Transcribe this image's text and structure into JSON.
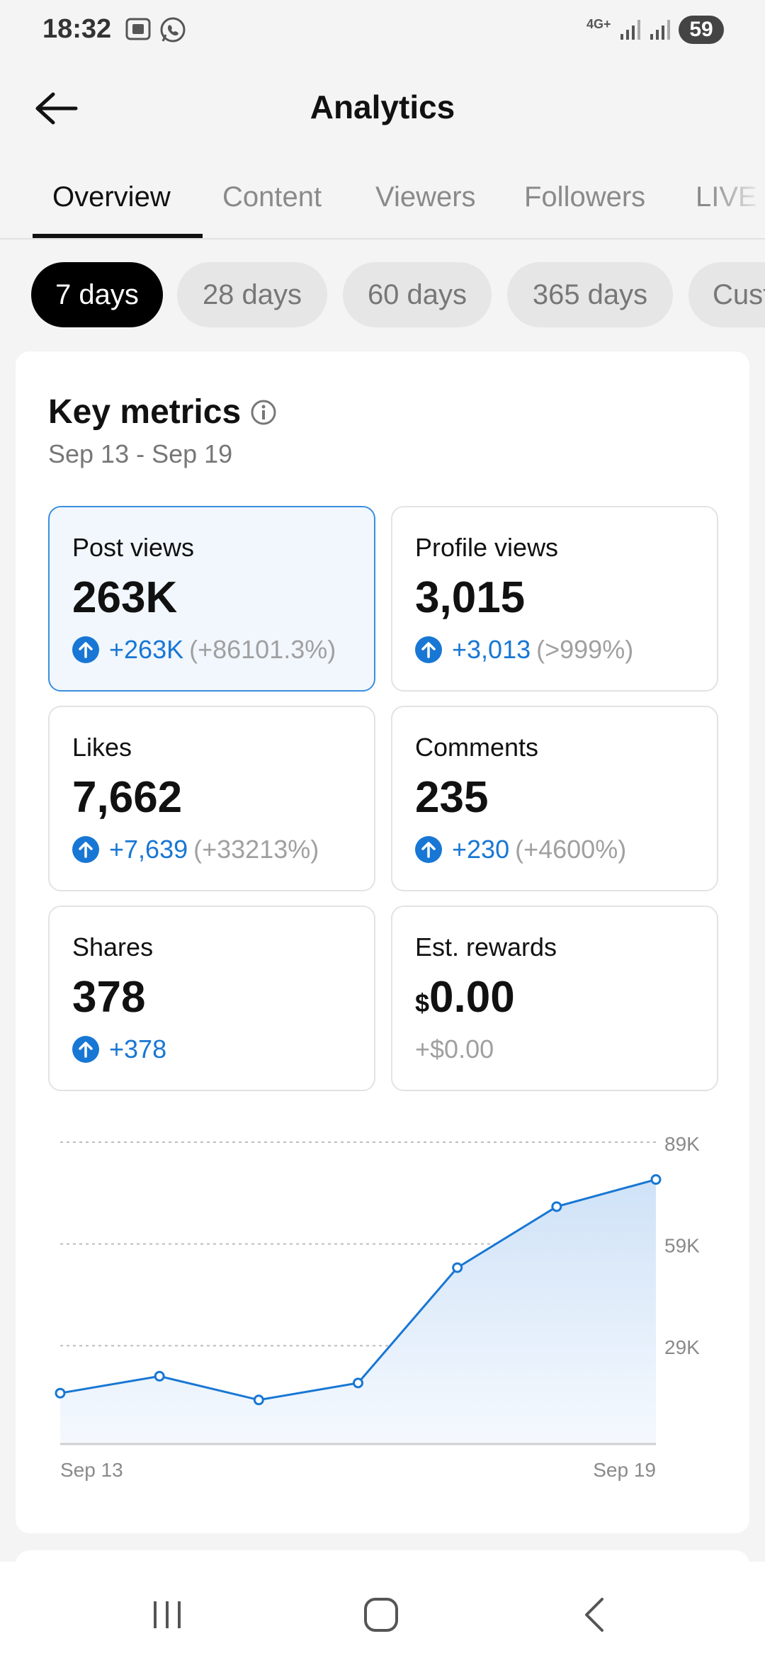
{
  "status": {
    "time": "18:32",
    "network": "4G+",
    "battery": "59"
  },
  "header": {
    "title": "Analytics"
  },
  "tabs": [
    {
      "label": "Overview",
      "active": true
    },
    {
      "label": "Content"
    },
    {
      "label": "Viewers"
    },
    {
      "label": "Followers"
    },
    {
      "label": "LIVE"
    }
  ],
  "ranges": [
    {
      "label": "7 days",
      "active": true
    },
    {
      "label": "28 days"
    },
    {
      "label": "60 days"
    },
    {
      "label": "365 days"
    },
    {
      "label": "Custom"
    }
  ],
  "key_metrics": {
    "title": "Key metrics",
    "date_range": "Sep 13 - Sep 19",
    "items": [
      {
        "label": "Post views",
        "value": "263K",
        "delta": "+263K",
        "pct": "(+86101.3%)"
      },
      {
        "label": "Profile views",
        "value": "3,015",
        "delta": "+3,013",
        "pct": "(>999%)"
      },
      {
        "label": "Likes",
        "value": "7,662",
        "delta": "+7,639",
        "pct": "(+33213%)"
      },
      {
        "label": "Comments",
        "value": "235",
        "delta": "+230",
        "pct": "(+4600%)"
      },
      {
        "label": "Shares",
        "value": "378",
        "delta": "+378"
      },
      {
        "label": "Est. rewards",
        "currency": "$",
        "value": "0.00",
        "delta": "+$0.00"
      }
    ]
  },
  "colors": {
    "accent": "#1877d4",
    "selected_bg": "#f1f7fd",
    "selected_border": "#3b8ee0"
  },
  "chart_data": {
    "type": "area",
    "series": [
      {
        "values": [
          15000,
          20000,
          13000,
          18000,
          52000,
          70000,
          78000
        ]
      }
    ],
    "x_labels": [
      "Sep 13",
      "Sep 19"
    ],
    "y_ticks": [
      "89K",
      "59K",
      "29K"
    ],
    "y_tick_values": [
      89000,
      59000,
      29000
    ],
    "ylim": [
      0,
      89000
    ],
    "grid": true
  }
}
